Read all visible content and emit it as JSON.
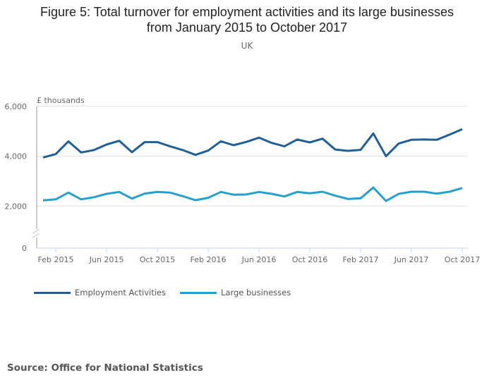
{
  "chart_data": {
    "type": "line",
    "title": "Figure 5: Total turnover for employment activities and its large businesses from January 2015 to October 2017",
    "title_lines": [
      "Figure 5: Total turnover for employment activities and its large businesses",
      "from January 2015 to October 2017"
    ],
    "subtitle": "UK",
    "ylabel": "£ thousands",
    "xlabel": "",
    "ylim": [
      0,
      6000
    ],
    "yticks": [
      {
        "value": 0,
        "label": "0"
      },
      {
        "value": 2000,
        "label": "2,000"
      },
      {
        "value": 4000,
        "label": "4,000"
      },
      {
        "value": 6000,
        "label": "6,000"
      }
    ],
    "x": [
      "Jan 2015",
      "Feb 2015",
      "Mar 2015",
      "Apr 2015",
      "May 2015",
      "Jun 2015",
      "Jul 2015",
      "Aug 2015",
      "Sep 2015",
      "Oct 2015",
      "Nov 2015",
      "Dec 2015",
      "Jan 2016",
      "Feb 2016",
      "Mar 2016",
      "Apr 2016",
      "May 2016",
      "Jun 2016",
      "Jul 2016",
      "Aug 2016",
      "Sep 2016",
      "Oct 2016",
      "Nov 2016",
      "Dec 2016",
      "Jan 2017",
      "Feb 2017",
      "Mar 2017",
      "Apr 2017",
      "May 2017",
      "Jun 2017",
      "Jul 2017",
      "Aug 2017",
      "Sep 2017",
      "Oct 2017"
    ],
    "xticks": [
      {
        "index": 1,
        "label": "Feb 2015"
      },
      {
        "index": 5,
        "label": "Jun 2015"
      },
      {
        "index": 9,
        "label": "Oct 2015"
      },
      {
        "index": 13,
        "label": "Feb 2016"
      },
      {
        "index": 17,
        "label": "Jun 2016"
      },
      {
        "index": 21,
        "label": "Oct 2016"
      },
      {
        "index": 25,
        "label": "Feb 2017"
      },
      {
        "index": 29,
        "label": "Jun 2017"
      },
      {
        "index": 33,
        "label": "Oct 2017"
      }
    ],
    "series": [
      {
        "name": "Employment Activities",
        "color": "#206095",
        "values": [
          3950,
          4085,
          4595,
          4150,
          4245,
          4470,
          4620,
          4160,
          4565,
          4565,
          4395,
          4245,
          4055,
          4225,
          4600,
          4440,
          4575,
          4745,
          4535,
          4395,
          4670,
          4555,
          4705,
          4270,
          4215,
          4255,
          4915,
          4000,
          4510,
          4660,
          4670,
          4660,
          4865,
          5085
        ]
      },
      {
        "name": "Large businesses",
        "color": "#27a0cc",
        "values": [
          2225,
          2270,
          2540,
          2270,
          2355,
          2490,
          2565,
          2300,
          2500,
          2565,
          2540,
          2395,
          2235,
          2330,
          2565,
          2455,
          2465,
          2565,
          2490,
          2385,
          2565,
          2510,
          2575,
          2415,
          2285,
          2310,
          2745,
          2205,
          2490,
          2575,
          2575,
          2500,
          2575,
          2725
        ]
      }
    ],
    "grid": true,
    "legend_position": "bottom-left",
    "axis_break": true
  },
  "source": "Source: Office for National Statistics"
}
